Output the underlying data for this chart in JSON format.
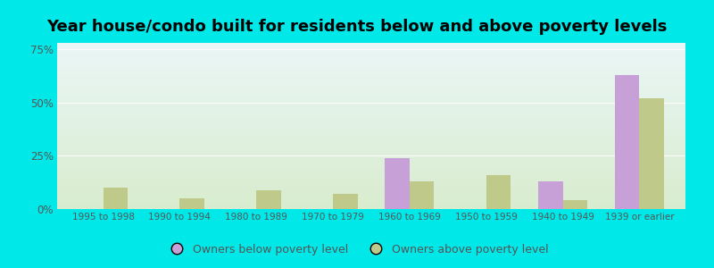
{
  "title": "Year house/condo built for residents below and above poverty levels",
  "categories": [
    "1995 to 1998",
    "1990 to 1994",
    "1980 to 1989",
    "1970 to 1979",
    "1960 to 1969",
    "1950 to 1959",
    "1940 to 1949",
    "1939 or earlier"
  ],
  "below_poverty": [
    0,
    0,
    0,
    0,
    24,
    0,
    13,
    63
  ],
  "above_poverty": [
    10,
    5,
    9,
    7,
    13,
    16,
    4,
    52
  ],
  "below_color": "#c8a0d8",
  "above_color": "#bfc98a",
  "ylabel_ticks": [
    0,
    25,
    50,
    75
  ],
  "ylim": [
    0,
    78
  ],
  "background_outer": "#00e8e8",
  "background_inner_top": "#eaf6f6",
  "background_inner_bottom": "#d8ecce",
  "legend_below": "Owners below poverty level",
  "legend_above": "Owners above poverty level",
  "title_fontsize": 13,
  "bar_width": 0.32
}
